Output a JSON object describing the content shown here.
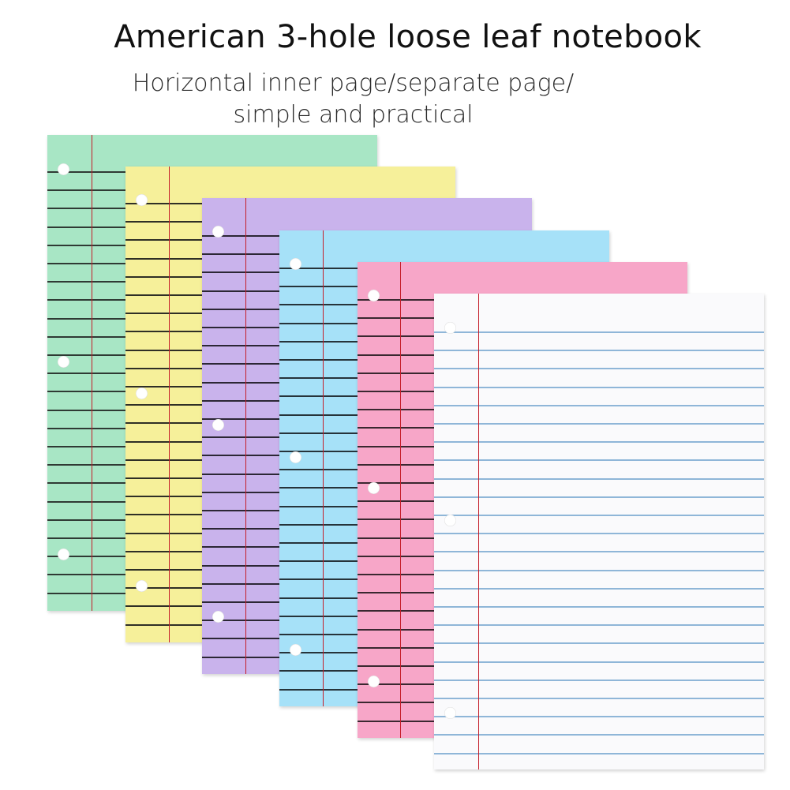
{
  "title": "American 3-hole loose leaf notebook",
  "subtitle": {
    "line1": "Horizontal inner page/separate page/",
    "line2": "simple and practical"
  },
  "sheets": [
    {
      "name": "sheet-green",
      "paper": "#a8e6c5",
      "rule": "#2f3a34",
      "hole_icon": "punch-hole-icon"
    },
    {
      "name": "sheet-yellow",
      "paper": "#f6f09a",
      "rule": "#2f2f26",
      "hole_icon": "punch-hole-icon"
    },
    {
      "name": "sheet-purple",
      "paper": "#c9b3ec",
      "rule": "#2c2735",
      "hole_icon": "punch-hole-icon"
    },
    {
      "name": "sheet-blue",
      "paper": "#a6e1f8",
      "rule": "#26333a",
      "hole_icon": "punch-hole-icon"
    },
    {
      "name": "sheet-pink",
      "paper": "#f7a6c8",
      "rule": "#3a2830",
      "hole_icon": "punch-hole-icon"
    },
    {
      "name": "sheet-white",
      "paper": "#fafafc",
      "rule": "#8fb6d8",
      "hole_icon": "punch-hole-icon"
    }
  ],
  "margin_line_color": "#c41e2a"
}
